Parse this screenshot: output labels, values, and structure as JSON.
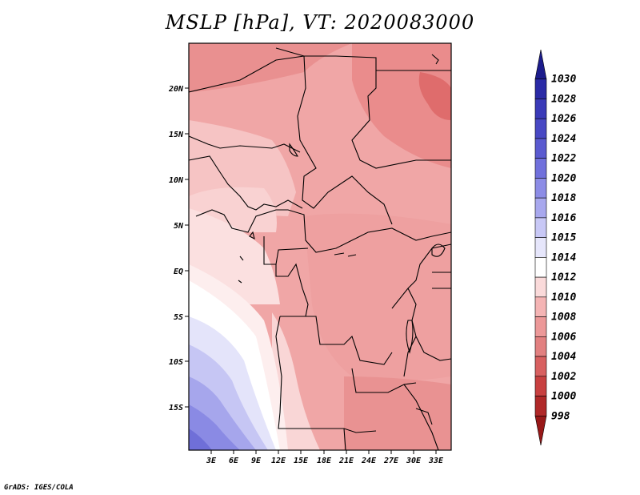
{
  "title": "MSLP [hPa], VT: 2020083000",
  "credit": "GrADS: IGES/COLA",
  "lat_labels": [
    "20N",
    "15N",
    "10N",
    "5N",
    "EQ",
    "5S",
    "10S",
    "15S"
  ],
  "lon_labels": [
    "3E",
    "6E",
    "9E",
    "12E",
    "15E",
    "18E",
    "21E",
    "24E",
    "27E",
    "30E",
    "33E"
  ],
  "colorbar": {
    "levels": [
      "1030",
      "1028",
      "1026",
      "1024",
      "1022",
      "1020",
      "1018",
      "1016",
      "1015",
      "1014",
      "1012",
      "1010",
      "1008",
      "1006",
      "1004",
      "1002",
      "1000",
      "998"
    ],
    "colors": [
      "#1c1c8c",
      "#2a2aa6",
      "#3a3ab8",
      "#4848c4",
      "#5a5ad0",
      "#7070dc",
      "#8c8ce6",
      "#a8a8ee",
      "#c8c8f6",
      "#e6e6fb",
      "#ffffff",
      "#fadada",
      "#f4b4b4",
      "#ec9898",
      "#e28080",
      "#d86060",
      "#c84040",
      "#b02828",
      "#981818"
    ]
  },
  "map_extent": {
    "lon_min": 0,
    "lon_max": 35,
    "lat_min": -19.5,
    "lat_max": 24.5
  },
  "chart_data": {
    "type": "heatmap",
    "title": "MSLP [hPa], VT: 2020083000",
    "variable": "MSLP",
    "units": "hPa",
    "valid_time": "2020083000",
    "x": [
      "3E",
      "6E",
      "9E",
      "12E",
      "15E",
      "18E",
      "21E",
      "24E",
      "27E",
      "30E",
      "33E"
    ],
    "y": [
      "20N",
      "15N",
      "10N",
      "5N",
      "EQ",
      "5S",
      "10S",
      "15S"
    ],
    "colorbar_levels": [
      998,
      1000,
      1002,
      1004,
      1006,
      1008,
      1010,
      1012,
      1014,
      1015,
      1016,
      1018,
      1020,
      1022,
      1024,
      1026,
      1028,
      1030
    ],
    "approx_field_hPa": {
      "far_northeast_sahara": 1005,
      "north_sahel": 1007,
      "central_africa_interior": 1009,
      "gulf_of_guinea_coast": 1012,
      "angola_coast": 1013,
      "south_atlantic_southwest": 1020
    }
  }
}
